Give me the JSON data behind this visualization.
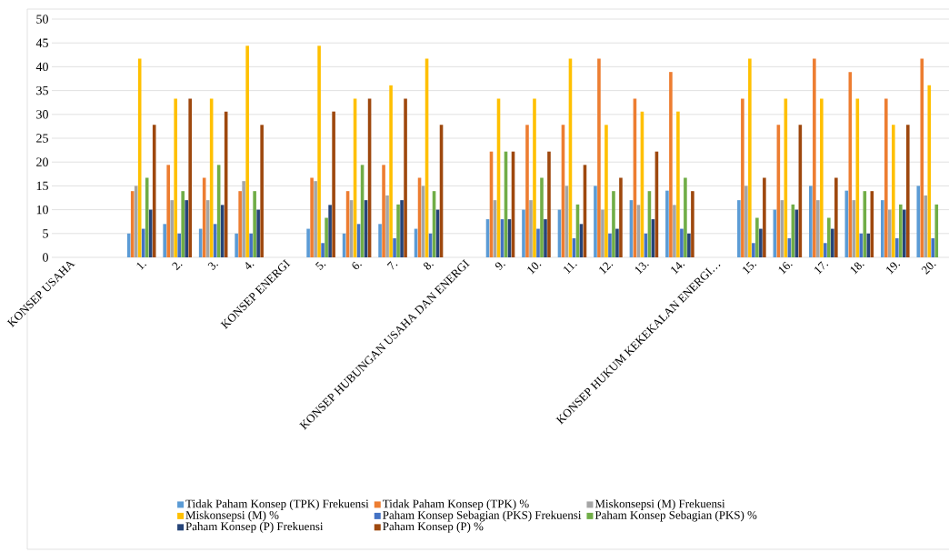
{
  "chart_data": {
    "type": "bar",
    "categories": [
      "KONSEP USAHA",
      null,
      "1.",
      "2.",
      "3.",
      "4.",
      "KONSEP ENERGI",
      "5.",
      "6.",
      "7.",
      "8.",
      "KONSEP HUBUNGAN USAHA DAN ENERGI",
      "9.",
      "10.",
      "11.",
      "12.",
      "13.",
      "14.",
      "KONSEP HUKUM KEKEKALAN ENERGI…",
      "15.",
      "16.",
      "17.",
      "18.",
      "19.",
      "20."
    ],
    "series": [
      {
        "name": "Tidak Paham Konsep (TPK) Frekuensi",
        "color": "#5b9bd5",
        "values": [
          null,
          null,
          5,
          7,
          6,
          5,
          null,
          6,
          5,
          7,
          6,
          null,
          8,
          10,
          10,
          15,
          12,
          14,
          null,
          12,
          10,
          15,
          14,
          12,
          15
        ]
      },
      {
        "name": "Tidak Paham Konsep (TPK) %",
        "color": "#ed7d31",
        "values": [
          null,
          null,
          13.9,
          19.4,
          16.7,
          13.9,
          null,
          16.7,
          13.9,
          19.4,
          16.7,
          null,
          22.2,
          27.8,
          27.8,
          41.7,
          33.3,
          38.9,
          null,
          33.3,
          27.8,
          41.7,
          38.9,
          33.3,
          41.7
        ]
      },
      {
        "name": "Miskonsepsi (M) Frekuensi",
        "color": "#a5a5a5",
        "values": [
          null,
          null,
          15,
          12,
          12,
          16,
          null,
          16,
          12,
          13,
          15,
          null,
          12,
          12,
          15,
          10,
          11,
          11,
          null,
          15,
          12,
          12,
          12,
          10,
          13
        ]
      },
      {
        "name": "Miskonsepsi (M) %",
        "color": "#ffc000",
        "values": [
          null,
          null,
          41.7,
          33.3,
          33.3,
          44.4,
          null,
          44.4,
          33.3,
          36.1,
          41.7,
          null,
          33.3,
          33.3,
          41.7,
          27.8,
          30.6,
          30.6,
          null,
          41.7,
          33.3,
          33.3,
          33.3,
          27.8,
          36.1
        ]
      },
      {
        "name": "Paham Konsep Sebagian (PKS)  Frekuensi",
        "color": "#4472c4",
        "values": [
          null,
          null,
          6,
          5,
          7,
          5,
          null,
          3,
          7,
          4,
          5,
          null,
          8,
          6,
          4,
          5,
          5,
          6,
          null,
          3,
          4,
          3,
          5,
          4,
          4
        ]
      },
      {
        "name": "Paham Konsep Sebagian (PKS)  %",
        "color": "#70ad47",
        "values": [
          null,
          null,
          16.7,
          13.9,
          19.4,
          13.9,
          null,
          8.3,
          19.4,
          11.1,
          13.9,
          null,
          22.2,
          16.7,
          11.1,
          13.9,
          13.9,
          16.7,
          null,
          8.3,
          11.1,
          8.3,
          13.9,
          11.1,
          11.1
        ]
      },
      {
        "name": "Paham Konsep (P) Frekuensi",
        "color": "#264478",
        "values": [
          null,
          null,
          10,
          12,
          11,
          10,
          null,
          11,
          12,
          12,
          10,
          null,
          8,
          8,
          7,
          6,
          8,
          5,
          null,
          6,
          10,
          6,
          5,
          10,
          null
        ]
      },
      {
        "name": "Paham Konsep (P) %",
        "color": "#9e480e",
        "values": [
          null,
          null,
          27.8,
          33.3,
          30.6,
          27.8,
          null,
          30.6,
          33.3,
          33.3,
          27.8,
          null,
          22.2,
          22.2,
          19.4,
          16.7,
          22.2,
          13.9,
          null,
          16.7,
          27.8,
          16.7,
          13.9,
          27.8,
          null
        ]
      }
    ],
    "ylim": [
      0,
      50
    ],
    "yticks": [
      0,
      5,
      10,
      15,
      20,
      25,
      30,
      35,
      40,
      45,
      50
    ],
    "grid": "y",
    "legend": "bottom"
  }
}
